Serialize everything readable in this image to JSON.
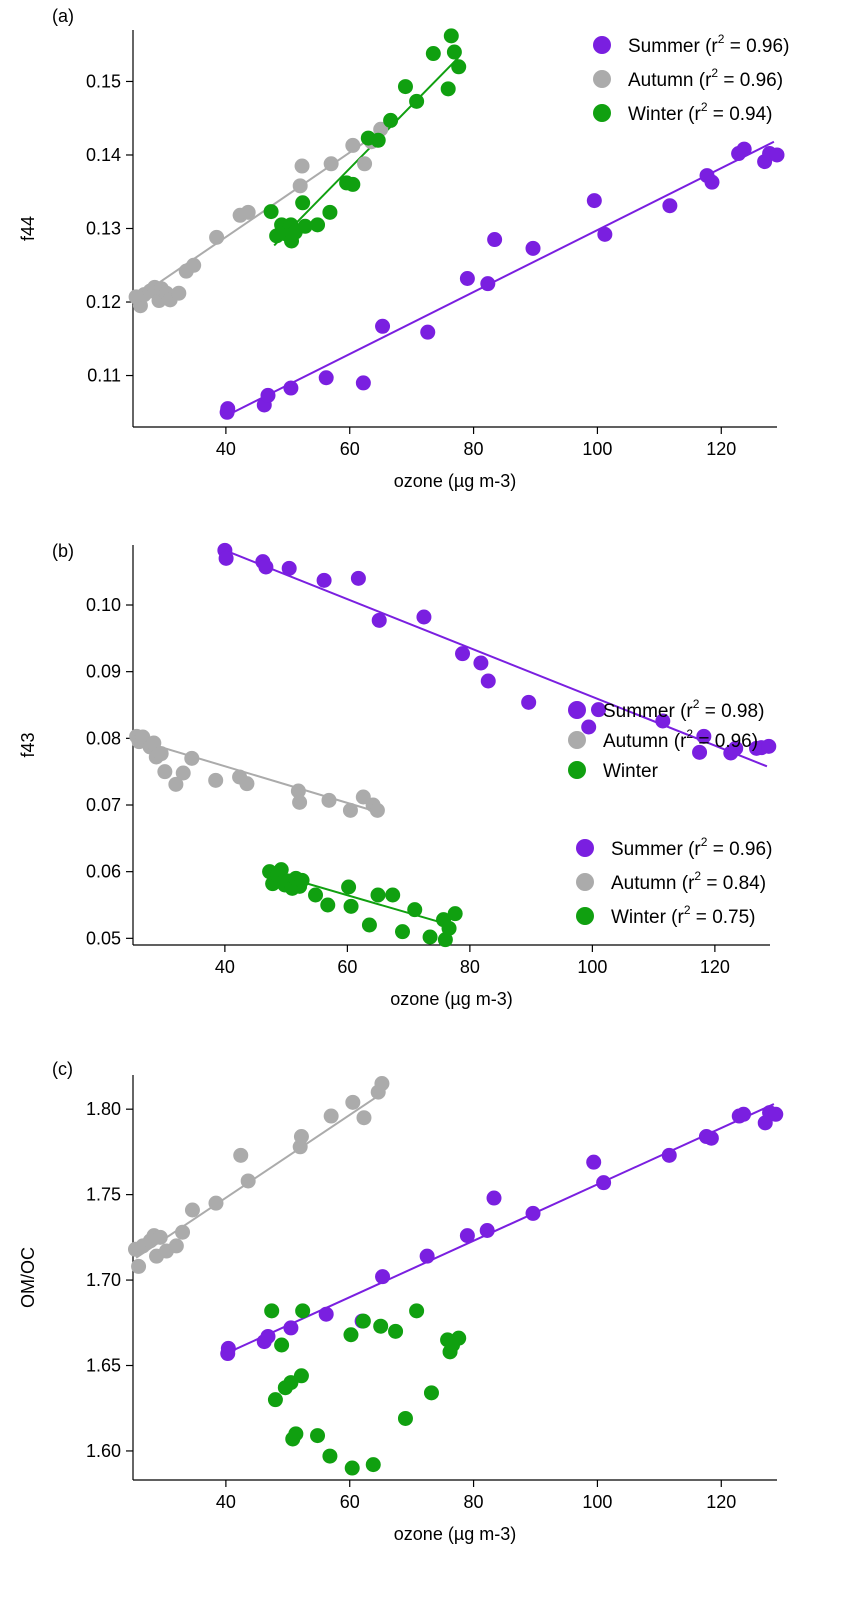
{
  "chart_data": [
    {
      "type": "scatter",
      "panel": "(a)",
      "xlabel": "ozone (µg m-3)",
      "ylabel": "f44",
      "xlim": [
        25,
        129
      ],
      "ylim": [
        0.103,
        0.157
      ],
      "xticks": [
        40,
        60,
        80,
        100,
        120
      ],
      "yticks": [
        0.11,
        0.12,
        0.13,
        0.14,
        0.15
      ],
      "ytick_decimals": 2,
      "grid": false,
      "legend_position": "top-right",
      "series": [
        {
          "name": "Summer",
          "r2": "0.96",
          "color": "#7A1FE0",
          "fit": [
            [
              40,
              0.1045
            ],
            [
              128.5,
              0.1418
            ]
          ],
          "points": [
            [
              40.3,
              0.1055
            ],
            [
              40.2,
              0.105
            ],
            [
              46.2,
              0.106
            ],
            [
              46.8,
              0.1073
            ],
            [
              50.5,
              0.1083
            ],
            [
              56.2,
              0.1097
            ],
            [
              62.2,
              0.109
            ],
            [
              65.3,
              0.1167
            ],
            [
              72.6,
              0.1159
            ],
            [
              79.0,
              0.1232
            ],
            [
              82.3,
              0.1225
            ],
            [
              83.4,
              0.1285
            ],
            [
              89.6,
              0.1273
            ],
            [
              99.5,
              0.1338
            ],
            [
              101.2,
              0.1292
            ],
            [
              111.7,
              0.1331
            ],
            [
              117.7,
              0.1372
            ],
            [
              118.5,
              0.1363
            ],
            [
              122.8,
              0.1402
            ],
            [
              123.7,
              0.1408
            ],
            [
              127.0,
              0.1391
            ],
            [
              127.8,
              0.1402
            ],
            [
              129.0,
              0.14
            ]
          ]
        },
        {
          "name": "Autumn",
          "r2": "0.96",
          "color": "#ABABAB",
          "fit": [
            [
              25.5,
              0.1205
            ],
            [
              65.5,
              0.1435
            ]
          ],
          "points": [
            [
              25.5,
              0.1207
            ],
            [
              26.2,
              0.1195
            ],
            [
              26.8,
              0.121
            ],
            [
              27.8,
              0.1215
            ],
            [
              28.5,
              0.122
            ],
            [
              29.2,
              0.1202
            ],
            [
              29.6,
              0.1218
            ],
            [
              30.4,
              0.1212
            ],
            [
              31.0,
              0.1203
            ],
            [
              32.4,
              0.1212
            ],
            [
              33.6,
              0.1242
            ],
            [
              34.8,
              0.125
            ],
            [
              38.5,
              0.1288
            ],
            [
              42.3,
              0.1318
            ],
            [
              43.6,
              0.1322
            ],
            [
              52.3,
              0.1385
            ],
            [
              52.0,
              0.1358
            ],
            [
              57.0,
              0.1388
            ],
            [
              60.5,
              0.1413
            ],
            [
              62.4,
              0.1388
            ],
            [
              63.5,
              0.1418
            ],
            [
              65.0,
              0.1435
            ]
          ]
        },
        {
          "name": "Winter",
          "r2": "0.94",
          "color": "#10A010",
          "fit": [
            [
              47.8,
              0.1277
            ],
            [
              77.5,
              0.1532
            ]
          ],
          "points": [
            [
              47.3,
              0.1323
            ],
            [
              48.2,
              0.129
            ],
            [
              49.0,
              0.1305
            ],
            [
              49.6,
              0.1293
            ],
            [
              50.5,
              0.1305
            ],
            [
              50.6,
              0.1283
            ],
            [
              51.2,
              0.1295
            ],
            [
              52.4,
              0.1335
            ],
            [
              52.8,
              0.1303
            ],
            [
              54.8,
              0.1305
            ],
            [
              56.8,
              0.1322
            ],
            [
              59.5,
              0.1362
            ],
            [
              60.5,
              0.136
            ],
            [
              63.0,
              0.1423
            ],
            [
              64.6,
              0.142
            ],
            [
              66.6,
              0.1447
            ],
            [
              69.0,
              0.1493
            ],
            [
              70.8,
              0.1473
            ],
            [
              73.5,
              0.1538
            ],
            [
              75.9,
              0.149
            ],
            [
              76.4,
              0.1562
            ],
            [
              76.9,
              0.154
            ],
            [
              77.6,
              0.152
            ]
          ]
        }
      ]
    },
    {
      "type": "scatter",
      "panel": "(b)",
      "xlabel": "ozone (µg m-3)",
      "ylabel": "f43",
      "xlim": [
        25,
        129
      ],
      "ylim": [
        0.049,
        0.109
      ],
      "xticks": [
        40,
        60,
        80,
        100,
        120
      ],
      "yticks": [
        0.05,
        0.06,
        0.07,
        0.08,
        0.09,
        0.1
      ],
      "ytick_decimals": 2,
      "grid": false,
      "legend_position": "bottom-right",
      "series": [
        {
          "name": "Summer",
          "r2": "0.96",
          "color": "#7A1FE0",
          "fit": [
            [
              40,
              0.1082
            ],
            [
              128.5,
              0.0758
            ]
          ],
          "points": [
            [
              40.0,
              0.1082
            ],
            [
              40.2,
              0.107
            ],
            [
              46.2,
              0.1065
            ],
            [
              46.7,
              0.1057
            ],
            [
              50.5,
              0.1055
            ],
            [
              56.2,
              0.1037
            ],
            [
              61.8,
              0.104
            ],
            [
              65.2,
              0.0977
            ],
            [
              72.5,
              0.0982
            ],
            [
              78.8,
              0.0927
            ],
            [
              81.8,
              0.0913
            ],
            [
              83.0,
              0.0886
            ],
            [
              89.6,
              0.0854
            ],
            [
              99.4,
              0.0817
            ],
            [
              101.0,
              0.0843
            ],
            [
              111.5,
              0.0826
            ],
            [
              117.5,
              0.0779
            ],
            [
              118.2,
              0.0803
            ],
            [
              122.6,
              0.0778
            ],
            [
              123.4,
              0.0785
            ],
            [
              126.8,
              0.0785
            ],
            [
              127.6,
              0.0786
            ],
            [
              128.8,
              0.0788
            ]
          ]
        },
        {
          "name": "Autumn",
          "r2": "0.84",
          "color": "#ABABAB",
          "fit": [
            [
              25.5,
              0.0798
            ],
            [
              65.5,
              0.0688
            ]
          ],
          "points": [
            [
              25.6,
              0.0803
            ],
            [
              26.0,
              0.0795
            ],
            [
              26.6,
              0.0802
            ],
            [
              27.8,
              0.0787
            ],
            [
              28.4,
              0.0793
            ],
            [
              28.8,
              0.0772
            ],
            [
              29.6,
              0.0777
            ],
            [
              30.2,
              0.075
            ],
            [
              32.0,
              0.0731
            ],
            [
              33.2,
              0.0748
            ],
            [
              34.6,
              0.077
            ],
            [
              38.5,
              0.0737
            ],
            [
              42.4,
              0.0742
            ],
            [
              43.6,
              0.0732
            ],
            [
              52.0,
              0.0721
            ],
            [
              52.2,
              0.0704
            ],
            [
              57.0,
              0.0707
            ],
            [
              60.5,
              0.0692
            ],
            [
              62.6,
              0.0712
            ],
            [
              64.2,
              0.07
            ],
            [
              64.9,
              0.0692
            ]
          ]
        },
        {
          "name": "Winter",
          "r2": "0.75",
          "color": "#10A010",
          "fit": [
            [
              47.5,
              0.0598
            ],
            [
              77.5,
              0.0518
            ]
          ],
          "points": [
            [
              47.3,
              0.06
            ],
            [
              47.8,
              0.0582
            ],
            [
              48.6,
              0.0595
            ],
            [
              49.2,
              0.0603
            ],
            [
              49.8,
              0.058
            ],
            [
              50.4,
              0.0586
            ],
            [
              51.0,
              0.0575
            ],
            [
              51.6,
              0.059
            ],
            [
              52.2,
              0.0578
            ],
            [
              52.6,
              0.0587
            ],
            [
              54.8,
              0.0565
            ],
            [
              56.8,
              0.055
            ],
            [
              60.2,
              0.0577
            ],
            [
              60.6,
              0.0548
            ],
            [
              63.6,
              0.052
            ],
            [
              65.0,
              0.0565
            ],
            [
              67.4,
              0.0565
            ],
            [
              69.0,
              0.051
            ],
            [
              71.0,
              0.0543
            ],
            [
              73.5,
              0.0502
            ],
            [
              75.7,
              0.0528
            ],
            [
              76.0,
              0.0498
            ],
            [
              76.6,
              0.0515
            ],
            [
              77.6,
              0.0537
            ]
          ]
        }
      ]
    },
    {
      "type": "scatter",
      "panel": "(c)",
      "xlabel": "ozone (µg m-3)",
      "ylabel": "OM/OC",
      "xlim": [
        25,
        129
      ],
      "ylim": [
        1.583,
        1.82
      ],
      "xticks": [
        40,
        60,
        80,
        100,
        120
      ],
      "yticks": [
        1.6,
        1.65,
        1.7,
        1.75,
        1.8
      ],
      "ytick_decimals": 2,
      "grid": false,
      "legend_position": "middle-right",
      "series": [
        {
          "name": "Summer",
          "r2": "0.98",
          "color": "#7A1FE0",
          "fit": [
            [
              40,
              1.657
            ],
            [
              128.5,
              1.803
            ]
          ],
          "points": [
            [
              40.4,
              1.66
            ],
            [
              40.3,
              1.657
            ],
            [
              46.2,
              1.664
            ],
            [
              46.8,
              1.667
            ],
            [
              50.5,
              1.672
            ],
            [
              56.2,
              1.68
            ],
            [
              62.0,
              1.676
            ],
            [
              65.3,
              1.702
            ],
            [
              72.5,
              1.714
            ],
            [
              79.0,
              1.726
            ],
            [
              82.2,
              1.729
            ],
            [
              83.3,
              1.748
            ],
            [
              89.6,
              1.739
            ],
            [
              99.4,
              1.769
            ],
            [
              101.0,
              1.757
            ],
            [
              111.6,
              1.773
            ],
            [
              117.6,
              1.784
            ],
            [
              118.4,
              1.783
            ],
            [
              122.9,
              1.796
            ],
            [
              123.6,
              1.797
            ],
            [
              127.1,
              1.792
            ],
            [
              127.8,
              1.798
            ],
            [
              128.8,
              1.797
            ]
          ]
        },
        {
          "name": "Autumn",
          "r2": "0.96",
          "color": "#ABABAB",
          "fit": [
            [
              25.5,
              1.713
            ],
            [
              65.5,
              1.81
            ]
          ],
          "points": [
            [
              25.4,
              1.718
            ],
            [
              25.9,
              1.708
            ],
            [
              26.6,
              1.72
            ],
            [
              27.8,
              1.723
            ],
            [
              28.4,
              1.726
            ],
            [
              28.8,
              1.714
            ],
            [
              29.4,
              1.725
            ],
            [
              30.4,
              1.717
            ],
            [
              32.0,
              1.72
            ],
            [
              33.0,
              1.728
            ],
            [
              34.6,
              1.741
            ],
            [
              38.4,
              1.745
            ],
            [
              42.4,
              1.773
            ],
            [
              43.6,
              1.758
            ],
            [
              52.0,
              1.778
            ],
            [
              52.2,
              1.784
            ],
            [
              57.0,
              1.796
            ],
            [
              60.5,
              1.804
            ],
            [
              62.3,
              1.795
            ],
            [
              64.6,
              1.81
            ],
            [
              65.2,
              1.815
            ]
          ]
        },
        {
          "name": "Winter",
          "r2": "",
          "color": "#10A010",
          "fit": [],
          "points": [
            [
              47.4,
              1.682
            ],
            [
              48.0,
              1.63
            ],
            [
              49.0,
              1.662
            ],
            [
              49.6,
              1.637
            ],
            [
              50.5,
              1.64
            ],
            [
              50.8,
              1.607
            ],
            [
              51.3,
              1.61
            ],
            [
              52.4,
              1.682
            ],
            [
              52.2,
              1.644
            ],
            [
              54.8,
              1.609
            ],
            [
              56.8,
              1.597
            ],
            [
              60.2,
              1.668
            ],
            [
              60.4,
              1.59
            ],
            [
              62.2,
              1.676
            ],
            [
              63.8,
              1.592
            ],
            [
              65.0,
              1.673
            ],
            [
              67.4,
              1.67
            ],
            [
              69.0,
              1.619
            ],
            [
              70.8,
              1.682
            ],
            [
              73.2,
              1.634
            ],
            [
              75.8,
              1.665
            ],
            [
              76.2,
              1.658
            ],
            [
              76.6,
              1.662
            ],
            [
              77.6,
              1.666
            ]
          ]
        }
      ]
    }
  ]
}
